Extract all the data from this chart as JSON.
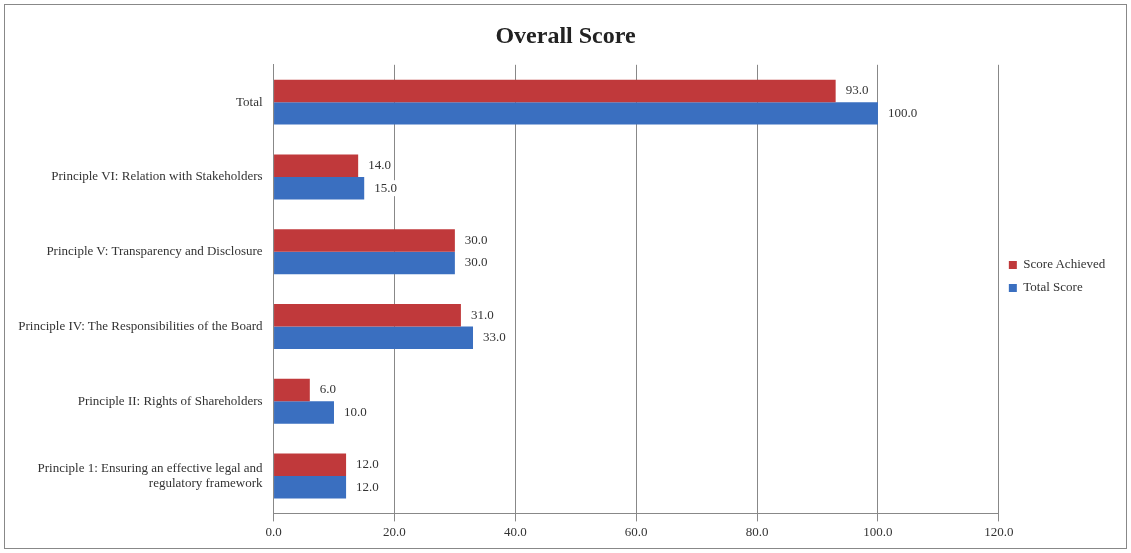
{
  "chart_data": {
    "type": "bar",
    "orientation": "horizontal",
    "title": "Overall Score",
    "categories": [
      "Total",
      "Principle VI: Relation with Stakeholders",
      "Principle V: Transparency and Disclosure",
      "Principle IV: The Responsibilities of the Board",
      "Principle II: Rights of Shareholders",
      "Principle 1: Ensuring an effective legal and regulatory framework"
    ],
    "series": [
      {
        "name": "Score Achieved",
        "color": "#c0393b",
        "values": [
          93,
          14,
          30,
          31,
          6,
          12
        ],
        "value_labels": [
          "93.0",
          "14.0",
          "30.0",
          "31.0",
          "6.0",
          "12.0"
        ]
      },
      {
        "name": "Total Score",
        "color": "#3a6fc0",
        "values": [
          100,
          15,
          30,
          33,
          10,
          12
        ],
        "value_labels": [
          "100.0",
          "15.0",
          "30.0",
          "33.0",
          "10.0",
          "12.0"
        ]
      }
    ],
    "xlim": [
      0,
      120
    ],
    "xticks": [
      {
        "value": 0,
        "label": "0.0"
      },
      {
        "value": 20,
        "label": "20.0"
      },
      {
        "value": 40,
        "label": "40.0"
      },
      {
        "value": 60,
        "label": "60.0"
      },
      {
        "value": 80,
        "label": "80.0"
      },
      {
        "value": 100,
        "label": "100.0"
      },
      {
        "value": 120,
        "label": "120.0"
      }
    ],
    "grid": "x",
    "legend": "right"
  }
}
